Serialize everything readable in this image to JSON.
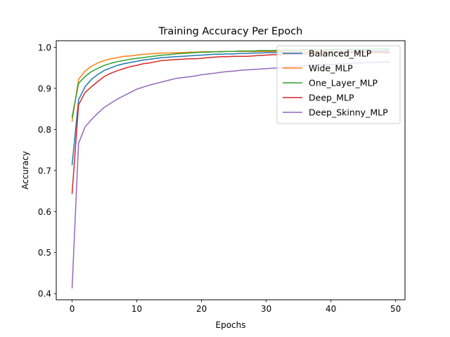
{
  "chart_data": {
    "type": "line",
    "title": "Training Accuracy Per Epoch",
    "xlabel": "Epochs",
    "ylabel": "Accuracy",
    "xlim": [
      -2.45,
      51.45
    ],
    "ylim": [
      0.385,
      1.016
    ],
    "xticks": [
      0,
      10,
      20,
      30,
      40,
      50
    ],
    "yticks": [
      0.4,
      0.5,
      0.6,
      0.7,
      0.8,
      0.9,
      1.0
    ],
    "grid": false,
    "legend": "top-right",
    "x": [
      0,
      1,
      2,
      3,
      4,
      5,
      6,
      7,
      8,
      9,
      10,
      11,
      12,
      13,
      14,
      15,
      16,
      17,
      18,
      19,
      20,
      21,
      22,
      23,
      24,
      25,
      26,
      27,
      28,
      29,
      30,
      31,
      32,
      33,
      34,
      35,
      36,
      37,
      38,
      39,
      40,
      41,
      42,
      43,
      44,
      45,
      46,
      47,
      48,
      49
    ],
    "series": [
      {
        "name": "Balanced_MLP",
        "color": "#1f77b4",
        "values": [
          0.714,
          0.872,
          0.904,
          0.922,
          0.934,
          0.944,
          0.95,
          0.956,
          0.96,
          0.963,
          0.966,
          0.969,
          0.971,
          0.973,
          0.975,
          0.976,
          0.977,
          0.978,
          0.979,
          0.98,
          0.981,
          0.982,
          0.983,
          0.983,
          0.984,
          0.984,
          0.985,
          0.985,
          0.986,
          0.986,
          0.987,
          0.987,
          0.987,
          0.988,
          0.988,
          0.988,
          0.989,
          0.989,
          0.989,
          0.989,
          0.99,
          0.99,
          0.99,
          0.99,
          0.991,
          0.991,
          0.991,
          0.991,
          0.991,
          0.992
        ]
      },
      {
        "name": "Wide_MLP",
        "color": "#ff7f0e",
        "values": [
          0.82,
          0.922,
          0.942,
          0.954,
          0.962,
          0.968,
          0.972,
          0.975,
          0.978,
          0.979,
          0.981,
          0.983,
          0.984,
          0.985,
          0.986,
          0.986,
          0.987,
          0.987,
          0.988,
          0.988,
          0.989,
          0.989,
          0.989,
          0.99,
          0.99,
          0.99,
          0.99,
          0.99,
          0.99,
          0.99,
          0.99,
          0.99,
          0.99,
          0.989,
          0.989,
          0.989,
          0.989,
          0.989,
          0.989,
          0.989,
          0.988,
          0.988,
          0.988,
          0.988,
          0.988,
          0.988,
          0.987,
          0.987,
          0.987,
          0.986
        ]
      },
      {
        "name": "One_Layer_MLP",
        "color": "#2ca02c",
        "values": [
          0.83,
          0.912,
          0.929,
          0.941,
          0.949,
          0.956,
          0.961,
          0.965,
          0.968,
          0.971,
          0.973,
          0.975,
          0.977,
          0.979,
          0.981,
          0.982,
          0.984,
          0.985,
          0.986,
          0.987,
          0.988,
          0.988,
          0.989,
          0.989,
          0.99,
          0.99,
          0.991,
          0.991,
          0.991,
          0.992,
          0.992,
          0.992,
          0.993,
          0.993,
          0.993,
          0.993,
          0.994,
          0.994,
          0.994,
          0.994,
          0.994,
          0.995,
          0.995,
          0.995,
          0.995,
          0.995,
          0.995,
          0.996,
          0.996,
          0.996
        ]
      },
      {
        "name": "Deep_MLP",
        "color": "#d62728",
        "values": [
          0.644,
          0.86,
          0.89,
          0.904,
          0.917,
          0.929,
          0.937,
          0.943,
          0.948,
          0.953,
          0.956,
          0.96,
          0.962,
          0.965,
          0.968,
          0.969,
          0.97,
          0.971,
          0.972,
          0.972,
          0.973,
          0.975,
          0.976,
          0.977,
          0.977,
          0.978,
          0.978,
          0.978,
          0.979,
          0.98,
          0.981,
          0.982,
          0.982,
          0.983,
          0.983,
          0.984,
          0.984,
          0.985,
          0.985,
          0.985,
          0.986,
          0.986,
          0.986,
          0.987,
          0.987,
          0.987,
          0.988,
          0.988,
          0.988,
          0.988
        ]
      },
      {
        "name": "Deep_Skinny_MLP",
        "color": "#9467bd",
        "values": [
          0.414,
          0.766,
          0.806,
          0.824,
          0.84,
          0.854,
          0.864,
          0.874,
          0.882,
          0.89,
          0.898,
          0.903,
          0.908,
          0.912,
          0.916,
          0.92,
          0.924,
          0.926,
          0.928,
          0.93,
          0.933,
          0.935,
          0.937,
          0.939,
          0.941,
          0.942,
          0.944,
          0.945,
          0.946,
          0.947,
          0.948,
          0.949,
          0.95,
          0.952,
          0.953,
          0.954,
          0.955,
          0.956,
          0.957,
          0.958,
          0.958,
          0.959,
          0.96,
          0.961,
          0.962,
          0.962,
          0.963,
          0.963,
          0.964,
          0.964
        ]
      }
    ]
  }
}
